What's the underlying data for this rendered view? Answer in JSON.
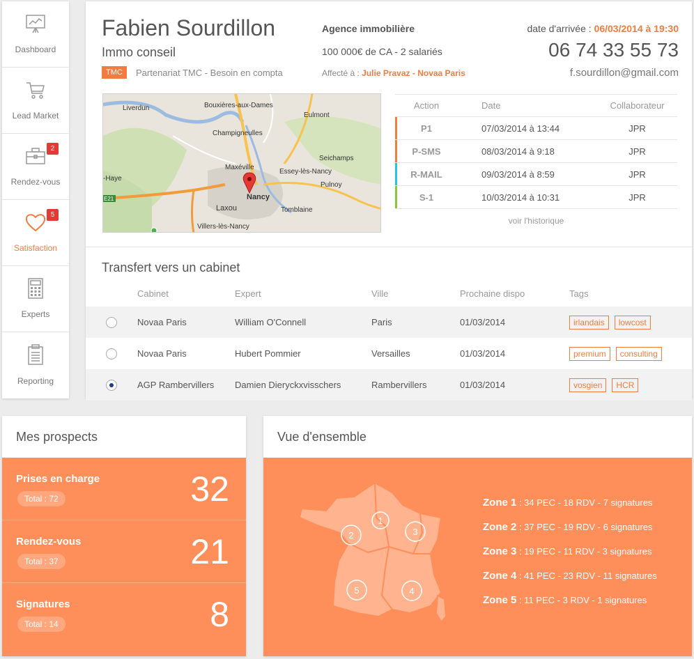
{
  "sidebar": {
    "items": [
      {
        "label": "Dashboard",
        "icon": "presentation-board-icon"
      },
      {
        "label": "Lead Market",
        "icon": "shopping-cart-icon"
      },
      {
        "label": "Rendez-vous",
        "icon": "briefcase-icon",
        "badge": "2"
      },
      {
        "label": "Satisfaction",
        "icon": "heart-icon",
        "badge": "5",
        "active": true
      },
      {
        "label": "Experts",
        "icon": "calculator-icon"
      },
      {
        "label": "Reporting",
        "icon": "clipboard-icon"
      }
    ]
  },
  "lead": {
    "name": "Fabien Sourdillon",
    "company": "Immo conseil",
    "tag": "TMC",
    "partner": "Partenariat TMC - Besoin en compta",
    "agency": "Agence immobilière",
    "ca": "100 000€ de CA - 2 salariés",
    "affect_label": "Affecté à :",
    "affect_value": "Julie Pravaz - Novaa Paris",
    "arrival_label": "date d'arrivée :",
    "arrival_value": "06/03/2014 à 19:30",
    "phone": "06 74 33 55 73",
    "email": "f.sourdillon@gmail.com"
  },
  "map": {
    "labels": [
      "Liverdun",
      "Bouxières-aux-Dames",
      "Eulmont",
      "Champigneulles",
      "Seichamps",
      "Maxéville",
      "Essey-lès-Nancy",
      "-Haye",
      "Pulnoy",
      "Nancy",
      "Laxou",
      "Tomblaine",
      "Villers-lès-Nancy",
      "E21"
    ]
  },
  "actions": {
    "headers": {
      "action": "Action",
      "date": "Date",
      "collab": "Collaborateur"
    },
    "rows": [
      {
        "action": "P1",
        "date": "07/03/2014 à 13:44",
        "collab": "JPR",
        "color": "#f07d3f"
      },
      {
        "action": "P-SMS",
        "date": "08/03/2014 à 9:18",
        "collab": "JPR",
        "color": "#f07d3f"
      },
      {
        "action": "R-MAIL",
        "date": "09/03/2014 à 8:59",
        "collab": "JPR",
        "color": "#29c4d8"
      },
      {
        "action": "S-1",
        "date": "10/03/2014 à 10:31",
        "collab": "JPR",
        "color": "#8bc43f"
      }
    ],
    "history_link": "voir l'historique"
  },
  "transfer": {
    "title": "Transfert vers un cabinet",
    "headers": {
      "cabinet": "Cabinet",
      "expert": "Expert",
      "ville": "Ville",
      "dispo": "Prochaine dispo",
      "tags": "Tags"
    },
    "rows": [
      {
        "cabinet": "Novaa Paris",
        "expert": "William O'Connell",
        "ville": "Paris",
        "dispo": "01/03/2014",
        "tags": [
          "irlandais",
          "lowcost"
        ],
        "checked": false
      },
      {
        "cabinet": "Novaa Paris",
        "expert": "Hubert Pommier",
        "ville": "Versailles",
        "dispo": "01/03/2014",
        "tags": [
          "premium",
          "consulting"
        ],
        "checked": false
      },
      {
        "cabinet": "AGP Rambervillers",
        "expert": "Damien Dieryckxvisschers",
        "ville": "Rambervillers",
        "dispo": "01/03/2014",
        "tags": [
          "vosgien",
          "HCR"
        ],
        "checked": true
      }
    ]
  },
  "prospects": {
    "title": "Mes prospects",
    "rows": [
      {
        "label": "Prises en charge",
        "total": "Total : 72",
        "value": "32"
      },
      {
        "label": "Rendez-vous",
        "total": "Total : 37",
        "value": "21"
      },
      {
        "label": "Signatures",
        "total": "Total : 14",
        "value": "8"
      }
    ]
  },
  "overview": {
    "title": "Vue d'ensemble",
    "zones": [
      {
        "name": "Zone 1",
        "detail": " : 34 PEC - 18 RDV - 7 signatures"
      },
      {
        "name": "Zone 2",
        "detail": " : 37 PEC - 19 RDV - 6 signatures"
      },
      {
        "name": "Zone 3",
        "detail": " : 19 PEC - 11 RDV - 3 signatures"
      },
      {
        "name": "Zone 4",
        "detail": " : 41 PEC - 23 RDV - 11 signatures"
      },
      {
        "name": "Zone 5",
        "detail": " : 11 PEC - 3 RDV - 1 signatures"
      }
    ],
    "map_numbers": [
      "1",
      "2",
      "3",
      "4",
      "5"
    ]
  },
  "colors": {
    "accent": "#f07d3f",
    "panel": "#ff8f5a",
    "badge": "#e53935"
  }
}
